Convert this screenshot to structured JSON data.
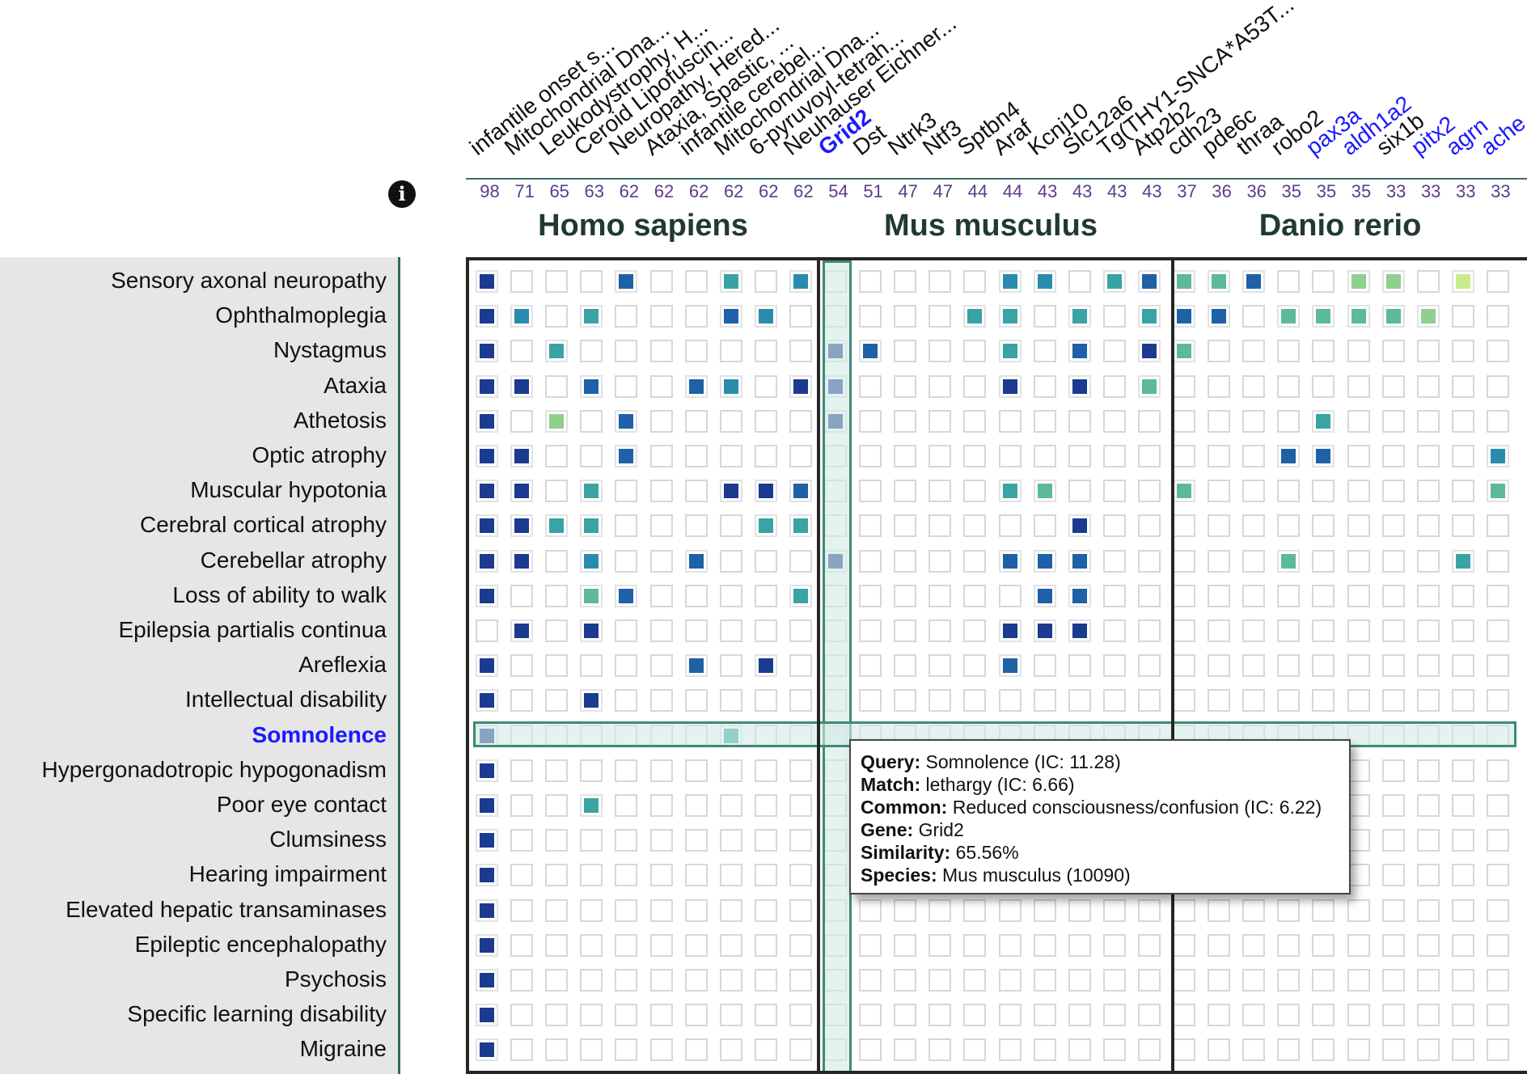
{
  "info_icon": "info-icon",
  "species": [
    {
      "name": "Homo sapiens"
    },
    {
      "name": "Mus musculus"
    },
    {
      "name": "Danio rerio"
    }
  ],
  "columns": [
    {
      "label": "infantile onset s...",
      "score": "98",
      "model": false
    },
    {
      "label": "Mitochondrial Dna...",
      "score": "71",
      "model": false
    },
    {
      "label": "Leukodystrophy, H...",
      "score": "65",
      "model": false
    },
    {
      "label": "Ceroid Lipofuscin...",
      "score": "63",
      "model": false
    },
    {
      "label": "Neuropathy, Hered...",
      "score": "62",
      "model": false
    },
    {
      "label": "Ataxia, Spastic, ...",
      "score": "62",
      "model": false
    },
    {
      "label": "infantile cerebel...",
      "score": "62",
      "model": false
    },
    {
      "label": "Mitochondrial Dna...",
      "score": "62",
      "model": false
    },
    {
      "label": "6-pyruvoyl-tetrah...",
      "score": "62",
      "model": false
    },
    {
      "label": "Neuhauser Eichner...",
      "score": "62",
      "model": false
    },
    {
      "label": "Grid2",
      "score": "54",
      "model": true
    },
    {
      "label": "Dst",
      "score": "51",
      "model": false
    },
    {
      "label": "Ntrk3",
      "score": "47",
      "model": false
    },
    {
      "label": "Ntf3",
      "score": "47",
      "model": false
    },
    {
      "label": "Sptbn4",
      "score": "44",
      "model": false
    },
    {
      "label": "Araf",
      "score": "44",
      "model": false
    },
    {
      "label": "Kcnj10",
      "score": "43",
      "model": false
    },
    {
      "label": "Slc12a6",
      "score": "43",
      "model": false
    },
    {
      "label": "Tg(THY1-SNCA*A53T...",
      "score": "43",
      "model": false
    },
    {
      "label": "Atp2b2",
      "score": "43",
      "model": false
    },
    {
      "label": "cdh23",
      "score": "37",
      "model": false
    },
    {
      "label": "pde6c",
      "score": "36",
      "model": false
    },
    {
      "label": "thraa",
      "score": "36",
      "model": false
    },
    {
      "label": "robo2",
      "score": "35",
      "model": false
    },
    {
      "label": "pax3a",
      "score": "35",
      "model": true
    },
    {
      "label": "aldh1a2",
      "score": "35",
      "model": true
    },
    {
      "label": "six1b",
      "score": "33",
      "model": false
    },
    {
      "label": "pitx2",
      "score": "33",
      "model": true
    },
    {
      "label": "agrn",
      "score": "33",
      "model": true
    },
    {
      "label": "ache",
      "score": "33",
      "model": true
    }
  ],
  "rows": [
    "Sensory axonal neuropathy",
    "Ophthalmoplegia",
    "Nystagmus",
    "Ataxia",
    "Athetosis",
    "Optic atrophy",
    "Muscular hypotonia",
    "Cerebral cortical atrophy",
    "Cerebellar atrophy",
    "Loss of ability to walk",
    "Epilepsia partialis continua",
    "Areflexia",
    "Intellectual disability",
    "Somnolence",
    "Hypergonadotropic hypogonadism",
    "Poor eye contact",
    "Clumsiness",
    "Hearing impairment",
    "Elevated hepatic transaminases",
    "Epileptic encephalopathy",
    "Psychosis",
    "Specific learning disability",
    "Migraine"
  ],
  "active_row_index": 13,
  "active_column_index": 10,
  "palette": [
    "#ffffff",
    "#1a3b8f",
    "#1e61a6",
    "#2a8cad",
    "#3aa3a3",
    "#5cb99a",
    "#8fd08f",
    "#c7ec8f"
  ],
  "grid": [
    "100020040300000330425520066070",
    "130400023000004404042205555600",
    "104000000012000402015000000000",
    "110200230110000101050000000000",
    "106020000010000000000000400000",
    "110020000000000000000002200003",
    "110400011200000450005000000005",
    "114400004400000001000000000000",
    "110300200010000222000005000040",
    "100520000400000022000000000000",
    "010100000000000111000000000000",
    "100000201000000200000000000000",
    "100100000000000000000000000000",
    "100000040000000000000000000000",
    "100000000000000000000000000000",
    "100400000000000000000000000000",
    "100000000000000000000000000000",
    "100000000000000000000000000000",
    "100000000000000000000000000000",
    "100000000000000000000000000000",
    "100000000000000000000000000000",
    "100000000000000000000000000000",
    "100000000000000000000000000000"
  ],
  "tooltip": {
    "query_label": "Query:",
    "query_value": "Somnolence (IC: 11.28)",
    "match_label": "Match:",
    "match_value": "lethargy (IC: 6.66)",
    "common_label": "Common:",
    "common_value": "Reduced consciousness/confusion (IC: 6.22)",
    "gene_label": "Gene:",
    "gene_value": "Grid2",
    "similarity_label": "Similarity:",
    "similarity_value": "65.56%",
    "species_label": "Species:",
    "species_value": "Mus musculus (10090)"
  }
}
